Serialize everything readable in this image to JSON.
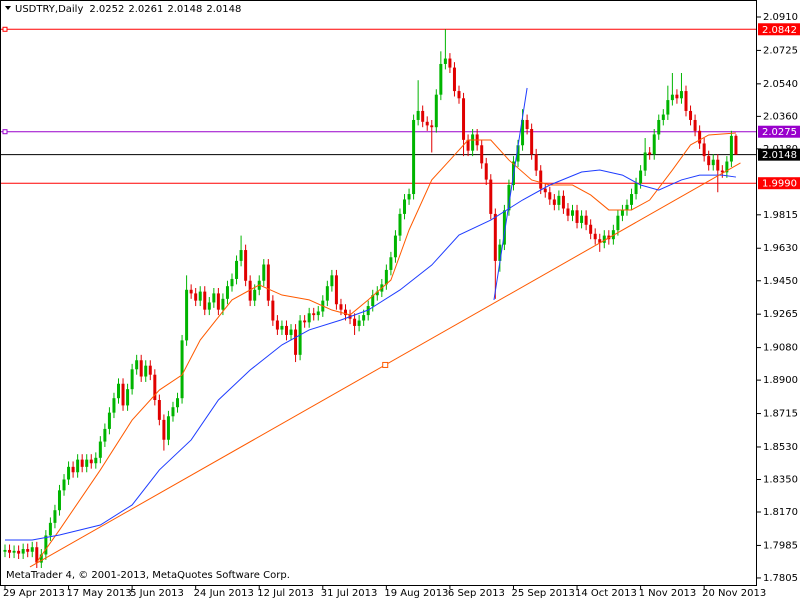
{
  "chart_data": {
    "type": "candlestick",
    "title": "USDTRY,Daily",
    "footer": "MetaTrader 4, © 2001-2013, MetaQuotes Software Corp.",
    "categories": [
      "29 Apr 2013",
      null,
      null,
      null,
      null,
      null,
      null,
      null,
      null,
      null,
      null,
      null,
      null,
      null,
      "17 May 2013",
      null,
      null,
      null,
      null,
      null,
      null,
      null,
      null,
      null,
      null,
      null,
      null,
      null,
      "5 Jun 2013",
      null,
      null,
      null,
      null,
      null,
      null,
      null,
      null,
      null,
      null,
      null,
      null,
      null,
      "24 Jun 2013",
      null,
      null,
      null,
      null,
      null,
      null,
      null,
      null,
      null,
      null,
      null,
      null,
      null,
      "12 Jul 2013",
      null,
      null,
      null,
      null,
      null,
      null,
      null,
      null,
      null,
      null,
      null,
      null,
      null,
      "31 Jul 2013",
      null,
      null,
      null,
      null,
      null,
      null,
      null,
      null,
      null,
      null,
      null,
      null,
      null,
      "19 Aug 2013",
      null,
      null,
      null,
      null,
      null,
      null,
      null,
      null,
      null,
      null,
      null,
      null,
      null,
      "6 Sep 2013",
      null,
      null,
      null,
      null,
      null,
      null,
      null,
      null,
      null,
      null,
      null,
      null,
      null,
      "25 Sep 2013",
      null,
      null,
      null,
      null,
      null,
      null,
      null,
      null,
      null,
      null,
      null,
      null,
      null,
      "14 Oct 2013",
      null,
      null,
      null,
      null,
      null,
      null,
      null,
      null,
      null,
      null,
      null,
      null,
      null,
      "1 Nov 2013",
      null,
      null,
      null,
      null,
      null,
      null,
      null,
      null,
      null,
      null,
      null,
      null,
      null,
      "20 Nov 2013",
      null,
      null,
      null,
      null,
      null,
      null,
      null
    ],
    "open": [
      1.795,
      1.796,
      1.7945,
      1.7955,
      1.794,
      1.7965,
      1.795,
      1.7975,
      1.789,
      1.7935,
      1.804,
      1.811,
      1.818,
      1.829,
      1.835,
      1.842,
      1.839,
      1.846,
      1.842,
      1.846,
      1.844,
      1.847,
      1.856,
      1.863,
      1.872,
      1.88,
      1.888,
      1.876,
      1.885,
      1.896,
      1.901,
      1.892,
      1.898,
      1.893,
      1.879,
      1.868,
      1.857,
      1.87,
      1.875,
      1.88,
      1.912,
      1.94,
      1.938,
      1.934,
      1.939,
      1.929,
      1.933,
      1.938,
      1.929,
      1.935,
      1.942,
      1.946,
      1.956,
      1.962,
      1.945,
      1.934,
      1.94,
      1.945,
      1.954,
      1.934,
      1.923,
      1.918,
      1.92,
      1.915,
      1.918,
      1.904,
      1.923,
      1.922,
      1.927,
      1.926,
      1.928,
      1.934,
      1.942,
      1.948,
      1.932,
      1.929,
      1.926,
      1.924,
      1.92,
      1.923,
      1.926,
      1.931,
      1.937,
      1.939,
      1.943,
      1.951,
      1.958,
      1.97,
      1.982,
      1.99,
      1.993,
      2.034,
      2.039,
      2.033,
      2.031,
      2.03,
      2.048,
      2.065,
      2.068,
      2.063,
      2.05,
      2.046,
      2.023,
      2.017,
      2.026,
      2.02,
      2.01,
      2.001,
      1.982,
      1.956,
      1.965,
      1.984,
      1.998,
      2.011,
      2.02,
      2.034,
      2.029,
      2.015,
      2.006,
      1.996,
      1.994,
      1.99,
      1.987,
      1.992,
      1.985,
      1.981,
      1.984,
      1.977,
      1.981,
      1.976,
      1.971,
      1.968,
      1.966,
      1.97,
      1.968,
      1.973,
      1.981,
      1.984,
      1.987,
      1.993,
      1.999,
      2.006,
      2.016,
      2.015,
      2.026,
      2.034,
      2.037,
      2.045,
      2.048,
      2.046,
      2.05,
      2.039,
      2.034,
      2.028,
      2.021,
      2.014,
      2.009,
      2.012,
      2.006,
      2.005,
      2.011,
      2.0252
    ],
    "high": [
      1.799,
      1.799,
      1.7985,
      1.7985,
      1.7995,
      1.7995,
      1.8005,
      1.8005,
      1.7965,
      1.807,
      1.814,
      1.821,
      1.832,
      1.838,
      1.845,
      1.845,
      1.849,
      1.849,
      1.849,
      1.849,
      1.85,
      1.859,
      1.866,
      1.875,
      1.883,
      1.891,
      1.891,
      1.888,
      1.899,
      1.904,
      1.904,
      1.901,
      1.901,
      1.896,
      1.882,
      1.871,
      1.873,
      1.878,
      1.883,
      1.915,
      1.948,
      1.943,
      1.941,
      1.942,
      1.942,
      1.936,
      1.941,
      1.941,
      1.938,
      1.945,
      1.949,
      1.959,
      1.97,
      1.965,
      1.948,
      1.943,
      1.948,
      1.957,
      1.957,
      1.937,
      1.926,
      1.923,
      1.923,
      1.921,
      1.921,
      1.926,
      1.926,
      1.93,
      1.93,
      1.931,
      1.937,
      1.945,
      1.951,
      1.951,
      1.935,
      1.932,
      1.929,
      1.927,
      1.926,
      1.929,
      1.934,
      1.94,
      1.942,
      1.946,
      1.954,
      1.961,
      1.973,
      1.985,
      1.993,
      1.996,
      2.037,
      2.056,
      2.042,
      2.036,
      2.034,
      2.051,
      2.072,
      2.0842,
      2.071,
      2.066,
      2.053,
      2.049,
      2.026,
      2.029,
      2.029,
      2.023,
      2.013,
      2.004,
      1.985,
      1.968,
      1.987,
      2.001,
      2.014,
      2.023,
      2.04,
      2.037,
      2.032,
      2.018,
      2.009,
      1.999,
      1.997,
      1.993,
      1.995,
      1.995,
      1.988,
      1.987,
      1.987,
      1.984,
      1.984,
      1.979,
      1.974,
      1.971,
      1.973,
      1.973,
      1.976,
      1.984,
      1.987,
      1.99,
      1.996,
      2.002,
      2.009,
      2.024,
      2.019,
      2.029,
      2.037,
      2.04,
      2.053,
      2.06,
      2.051,
      2.06,
      2.053,
      2.042,
      2.037,
      2.031,
      2.024,
      2.017,
      2.015,
      2.015,
      2.009,
      2.014,
      2.028,
      2.0261
    ],
    "low": [
      1.792,
      1.7915,
      1.7915,
      1.791,
      1.791,
      1.792,
      1.792,
      1.786,
      1.786,
      1.7905,
      1.801,
      1.808,
      1.815,
      1.826,
      1.832,
      1.836,
      1.836,
      1.839,
      1.839,
      1.841,
      1.841,
      1.844,
      1.853,
      1.86,
      1.869,
      1.877,
      1.873,
      1.873,
      1.882,
      1.893,
      1.889,
      1.889,
      1.89,
      1.876,
      1.865,
      1.851,
      1.854,
      1.867,
      1.872,
      1.877,
      1.909,
      1.935,
      1.931,
      1.931,
      1.926,
      1.926,
      1.93,
      1.926,
      1.926,
      1.932,
      1.939,
      1.943,
      1.953,
      1.942,
      1.931,
      1.931,
      1.937,
      1.942,
      1.931,
      1.92,
      1.915,
      1.915,
      1.912,
      1.912,
      1.9,
      1.901,
      1.919,
      1.919,
      1.923,
      1.923,
      1.925,
      1.931,
      1.939,
      1.929,
      1.926,
      1.923,
      1.921,
      1.915,
      1.917,
      1.92,
      1.923,
      1.928,
      1.934,
      1.936,
      1.94,
      1.948,
      1.955,
      1.967,
      1.979,
      1.987,
      1.99,
      2.031,
      2.03,
      2.028,
      2.016,
      2.027,
      2.045,
      2.062,
      2.06,
      2.047,
      2.043,
      2.014,
      2.014,
      2.014,
      2.017,
      2.007,
      1.998,
      1.979,
      1.935,
      1.95,
      1.962,
      1.981,
      1.995,
      2.008,
      2.017,
      2.026,
      2.012,
      2.003,
      1.993,
      1.991,
      1.987,
      1.984,
      1.984,
      1.982,
      1.978,
      1.978,
      1.974,
      1.974,
      1.973,
      1.968,
      1.965,
      1.961,
      1.963,
      1.965,
      1.965,
      1.97,
      1.978,
      1.981,
      1.984,
      1.99,
      1.996,
      2.003,
      2.012,
      2.012,
      2.023,
      2.031,
      2.034,
      2.042,
      2.043,
      2.043,
      2.036,
      2.031,
      2.025,
      2.018,
      2.011,
      2.006,
      2.006,
      1.994,
      2.002,
      2.002,
      2.008,
      2.0148
    ],
    "close": [
      1.796,
      1.7945,
      1.7955,
      1.794,
      1.7965,
      1.795,
      1.7975,
      1.789,
      1.7935,
      1.804,
      1.811,
      1.818,
      1.829,
      1.835,
      1.842,
      1.839,
      1.846,
      1.842,
      1.846,
      1.844,
      1.847,
      1.856,
      1.863,
      1.872,
      1.88,
      1.888,
      1.876,
      1.885,
      1.896,
      1.901,
      1.892,
      1.898,
      1.893,
      1.879,
      1.868,
      1.857,
      1.87,
      1.875,
      1.88,
      1.912,
      1.94,
      1.938,
      1.934,
      1.939,
      1.929,
      1.933,
      1.938,
      1.929,
      1.935,
      1.942,
      1.946,
      1.956,
      1.962,
      1.945,
      1.934,
      1.94,
      1.945,
      1.954,
      1.934,
      1.923,
      1.918,
      1.92,
      1.915,
      1.918,
      1.904,
      1.923,
      1.922,
      1.927,
      1.926,
      1.928,
      1.934,
      1.942,
      1.948,
      1.932,
      1.929,
      1.926,
      1.924,
      1.92,
      1.923,
      1.926,
      1.931,
      1.937,
      1.939,
      1.943,
      1.951,
      1.958,
      1.97,
      1.982,
      1.99,
      1.993,
      2.034,
      2.039,
      2.033,
      2.031,
      2.03,
      2.048,
      2.065,
      2.068,
      2.063,
      2.05,
      2.046,
      2.023,
      2.017,
      2.026,
      2.02,
      2.01,
      2.001,
      1.982,
      1.956,
      1.965,
      1.984,
      1.998,
      2.011,
      2.02,
      2.034,
      2.029,
      2.015,
      2.006,
      1.996,
      1.994,
      1.99,
      1.987,
      1.992,
      1.985,
      1.981,
      1.984,
      1.977,
      1.981,
      1.976,
      1.971,
      1.968,
      1.966,
      1.97,
      1.968,
      1.973,
      1.981,
      1.984,
      1.987,
      1.993,
      1.999,
      2.006,
      2.016,
      2.015,
      2.026,
      2.034,
      2.037,
      2.045,
      2.048,
      2.046,
      2.05,
      2.039,
      2.034,
      2.028,
      2.021,
      2.014,
      2.009,
      2.012,
      2.006,
      2.005,
      2.011,
      2.0252,
      2.0148
    ],
    "up_color": "#00b400",
    "down_color": "#e00000",
    "ylim": [
      1.7766,
      2.0993
    ],
    "yticks": [
      {
        "value": 2.091,
        "label": "2.0910"
      },
      2.0725,
      {
        "value": 2.054,
        "label": "2.0540"
      },
      {
        "value": 2.036,
        "label": "2.0360"
      },
      {
        "value": 2.018,
        "label": "2.0180"
      },
      1.9815,
      {
        "value": 1.963,
        "label": "1.9630"
      },
      {
        "value": 1.945,
        "label": "1.9450"
      },
      1.9265,
      {
        "value": 1.908,
        "label": "1.9080"
      },
      {
        "value": 1.89,
        "label": "1.8900"
      },
      1.8715,
      {
        "value": 1.853,
        "label": "1.8530"
      },
      {
        "value": 1.835,
        "label": "1.8350"
      },
      {
        "value": 1.817,
        "label": "1.8170"
      },
      1.7985,
      1.7805
    ],
    "moving_averages": [
      {
        "color": "#ff5a00",
        "x": [
          7,
          12,
          21,
          28,
          34,
          39,
          43,
          50,
          56,
          61,
          67,
          72,
          76,
          80,
          85,
          89,
          94,
          98,
          102,
          107,
          111,
          116,
          120,
          125,
          129,
          133,
          138,
          142,
          147,
          151,
          155,
          161
        ],
        "values": [
          1.7893,
          1.8071,
          1.8403,
          1.8679,
          1.8845,
          1.8929,
          1.9122,
          1.9344,
          1.9427,
          1.9371,
          1.9344,
          1.9288,
          1.9261,
          1.9344,
          1.9454,
          1.9731,
          2.0008,
          2.0118,
          2.0229,
          2.0229,
          2.0118,
          2.0008,
          1.998,
          1.998,
          1.9925,
          1.9842,
          1.9842,
          1.9897,
          2.0063,
          2.0202,
          2.0257,
          2.0268
        ]
      },
      {
        "color": "#1e3cff",
        "x": [
          0,
          6,
          12,
          21,
          28,
          34,
          41,
          47,
          54,
          61,
          67,
          74,
          80,
          87,
          94,
          100,
          107,
          114,
          120,
          127,
          131,
          136,
          140,
          144,
          149,
          153,
          158,
          161
        ],
        "values": [
          1.8015,
          1.8015,
          1.8043,
          1.8098,
          1.8209,
          1.8403,
          1.8569,
          1.879,
          1.8956,
          1.9095,
          1.9178,
          1.9233,
          1.9288,
          1.9399,
          1.9537,
          1.9703,
          1.9786,
          1.9897,
          1.998,
          2.0052,
          2.0063,
          2.0035,
          1.998,
          1.9952,
          2.0008,
          2.0035,
          2.0035,
          2.0024
        ]
      }
    ],
    "trendlines": [
      {
        "color": "#ff5a00",
        "x": [
          5.5,
          162
        ],
        "values": [
          1.7866,
          2.0102
        ]
      },
      {
        "color": "#1e3cff",
        "x": [
          107.7,
          115
        ],
        "values": [
          1.9344,
          2.0517
        ]
      }
    ],
    "levels": [
      {
        "value": 2.0842,
        "color": "#ff0000"
      },
      {
        "value": 2.0275,
        "color": "#9900cc"
      },
      {
        "value": 2.0148,
        "color": "#000000"
      },
      {
        "value": 1.999,
        "label": "1.9990",
        "color": "#ff0000"
      }
    ]
  }
}
